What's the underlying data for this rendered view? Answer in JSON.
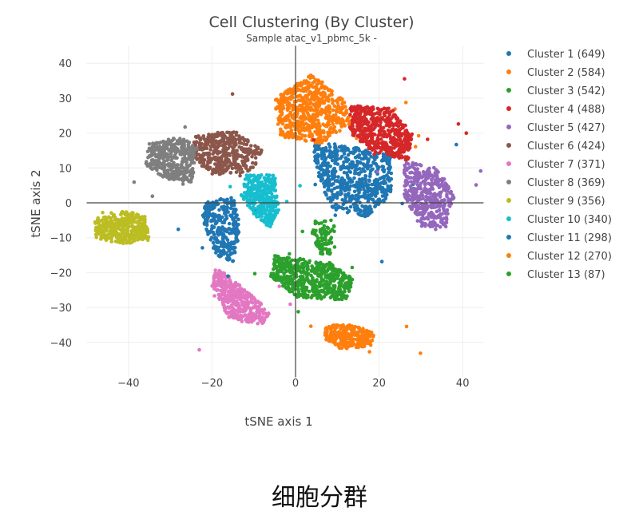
{
  "chart_data": {
    "type": "scatter",
    "title": "Cell Clustering (By Cluster)",
    "subtitle": "Sample atac_v1_pbmc_5k -",
    "xlabel": "tSNE axis 1",
    "ylabel": "tSNE axis 2",
    "xlim": [
      -50,
      45
    ],
    "ylim": [
      -50,
      45
    ],
    "xticks": [
      -40,
      -20,
      0,
      20,
      40
    ],
    "yticks": [
      40,
      30,
      20,
      10,
      0,
      -10,
      -20,
      -30,
      -40
    ],
    "xtick_labels": [
      "−40",
      "−20",
      "0",
      "20",
      "40"
    ],
    "ytick_labels": [
      "40",
      "30",
      "20",
      "10",
      "0",
      "−10",
      "−20",
      "−30",
      "−40"
    ],
    "grid": true,
    "legend_position": "right",
    "series": [
      {
        "name": "Cluster 1 (649)",
        "color": "#1f77b4",
        "count": 649,
        "center": [
          15,
          8
        ],
        "spread": [
          6,
          7
        ],
        "region": [
          [
            4,
            18
          ],
          [
            23,
            14
          ],
          [
            23,
            2
          ],
          [
            17,
            -4
          ],
          [
            9,
            -2
          ],
          [
            5,
            8
          ]
        ]
      },
      {
        "name": "Cluster 2 (584)",
        "color": "#ff7f0e",
        "count": 584,
        "center": [
          12,
          25
        ],
        "spread": [
          8,
          4
        ],
        "region": [
          [
            -5,
            30
          ],
          [
            0,
            34
          ],
          [
            4,
            37
          ],
          [
            12,
            29
          ],
          [
            14,
            23
          ],
          [
            6,
            17
          ],
          [
            -4,
            19
          ]
        ]
      },
      {
        "name": "Cluster 3 (542)",
        "color": "#2ca02c",
        "count": 542,
        "center": [
          4,
          -21
        ],
        "spread": [
          6,
          3
        ],
        "region": [
          [
            -5,
            -15
          ],
          [
            8,
            -17
          ],
          [
            14,
            -22
          ],
          [
            12,
            -28
          ],
          [
            0,
            -27
          ],
          [
            -6,
            -21
          ]
        ]
      },
      {
        "name": "Cluster 4 (488)",
        "color": "#d62728",
        "count": 488,
        "center": [
          22,
          22
        ],
        "spread": [
          6,
          4
        ],
        "region": [
          [
            13,
            28
          ],
          [
            23,
            27
          ],
          [
            28,
            20
          ],
          [
            27,
            12
          ],
          [
            18,
            15
          ],
          [
            13,
            20
          ]
        ]
      },
      {
        "name": "Cluster 5 (427)",
        "color": "#9467bd",
        "count": 427,
        "center": [
          33,
          2
        ],
        "spread": [
          4,
          6
        ],
        "region": [
          [
            26,
            12
          ],
          [
            34,
            10
          ],
          [
            38,
            2
          ],
          [
            36,
            -7
          ],
          [
            30,
            -7
          ],
          [
            26,
            2
          ]
        ]
      },
      {
        "name": "Cluster 6 (424)",
        "color": "#8c564b",
        "count": 424,
        "center": [
          -18,
          14
        ],
        "spread": [
          5,
          3
        ],
        "region": [
          [
            -24,
            19
          ],
          [
            -15,
            21
          ],
          [
            -8,
            15
          ],
          [
            -10,
            9
          ],
          [
            -20,
            8
          ],
          [
            -25,
            13
          ]
        ]
      },
      {
        "name": "Cluster 7 (371)",
        "color": "#e377c2",
        "count": 371,
        "center": [
          -14,
          -27
        ],
        "spread": [
          5,
          4
        ],
        "region": [
          [
            -19,
            -18
          ],
          [
            -13,
            -24
          ],
          [
            -6,
            -31
          ],
          [
            -8,
            -35
          ],
          [
            -16,
            -33
          ],
          [
            -20,
            -24
          ]
        ]
      },
      {
        "name": "Cluster 8 (369)",
        "color": "#7f7f7f",
        "count": 369,
        "center": [
          -29,
          12
        ],
        "spread": [
          4,
          4
        ],
        "region": [
          [
            -35,
            17
          ],
          [
            -27,
            19
          ],
          [
            -23,
            15
          ],
          [
            -25,
            6
          ],
          [
            -32,
            7
          ],
          [
            -36,
            11
          ]
        ]
      },
      {
        "name": "Cluster 9 (356)",
        "color": "#bcbd22",
        "count": 356,
        "center": [
          -42,
          -7
        ],
        "spread": [
          4,
          2
        ],
        "region": [
          [
            -48,
            -5
          ],
          [
            -40,
            -2
          ],
          [
            -36,
            -4
          ],
          [
            -35,
            -10
          ],
          [
            -41,
            -12
          ],
          [
            -48,
            -10
          ]
        ]
      },
      {
        "name": "Cluster 10 (340)",
        "color": "#17becf",
        "count": 340,
        "center": [
          -8,
          2
        ],
        "spread": [
          3,
          4
        ],
        "region": [
          [
            -12,
            8
          ],
          [
            -5,
            8
          ],
          [
            -4,
            -2
          ],
          [
            -6,
            -7
          ],
          [
            -10,
            -4
          ],
          [
            -13,
            2
          ]
        ]
      },
      {
        "name": "Cluster 11 (298)",
        "color": "#1f77b4",
        "count": 298,
        "center": [
          -17,
          -7
        ],
        "spread": [
          3,
          5
        ],
        "region": [
          [
            -22,
            0
          ],
          [
            -15,
            2
          ],
          [
            -13,
            -8
          ],
          [
            -15,
            -17
          ],
          [
            -19,
            -15
          ],
          [
            -22,
            -6
          ]
        ]
      },
      {
        "name": "Cluster 12 (270)",
        "color": "#ff7f0e",
        "count": 270,
        "center": [
          13,
          -38
        ],
        "spread": [
          5,
          2
        ],
        "region": [
          [
            7,
            -35
          ],
          [
            13,
            -35
          ],
          [
            19,
            -37
          ],
          [
            18,
            -41
          ],
          [
            11,
            -42
          ],
          [
            7,
            -39
          ]
        ]
      },
      {
        "name": "Cluster 13 (87)",
        "color": "#2ca02c",
        "count": 87,
        "center": [
          7,
          -10
        ],
        "spread": [
          2,
          3
        ],
        "region": [
          [
            4,
            -5
          ],
          [
            9,
            -5
          ],
          [
            10,
            -13
          ],
          [
            7,
            -16
          ],
          [
            4,
            -12
          ]
        ]
      }
    ]
  },
  "caption": "细胞分群"
}
